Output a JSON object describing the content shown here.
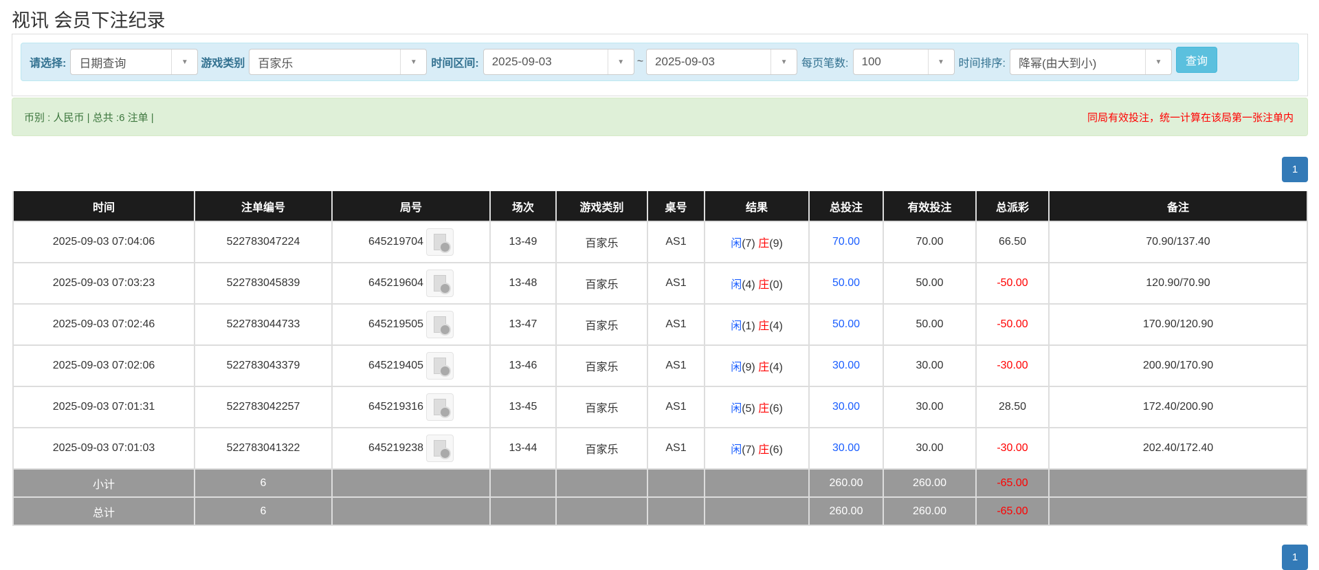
{
  "page": {
    "title": "视讯 会员下注纪录"
  },
  "filter": {
    "select_label": "请选择:",
    "select_value": "日期查询",
    "game_label": "游戏类别",
    "game_value": "百家乐",
    "range_label": "时间区间:",
    "start_date": "2025-09-03",
    "tilde": "~",
    "end_date": "2025-09-03",
    "per_page_label": "每页笔数:",
    "per_page_value": "100",
    "sort_label": "时间排序:",
    "sort_value": "降幂(由大到小)",
    "query_button": "查询"
  },
  "summary": {
    "left": "币别 : 人民币 | 总共 :6 注单 |",
    "right": "同局有效投注，统一计算在该局第一张注单内"
  },
  "pagination": {
    "current": "1"
  },
  "colors": {
    "header": "#1c1c1c",
    "accent": "#337ab7",
    "positive": "#1a5eff",
    "negative": "#ff0000",
    "sum_row": "#999999"
  },
  "table": {
    "headers": [
      "时间",
      "注单编号",
      "局号",
      "场次",
      "游戏类别",
      "桌号",
      "结果",
      "总投注",
      "有效投注",
      "总派彩",
      "备注"
    ],
    "rows": [
      {
        "time": "2025-09-03 07:04:06",
        "bet_no": "522783047224",
        "round": "645219704",
        "shoe": "13-49",
        "game": "百家乐",
        "table": "AS1",
        "player_label": "闲",
        "player": "(7)",
        "banker_label": "庄",
        "banker": "(9)",
        "total": "70.00",
        "valid": "70.00",
        "payout": "66.50",
        "payout_neg": false,
        "note": "70.90/137.40"
      },
      {
        "time": "2025-09-03 07:03:23",
        "bet_no": "522783045839",
        "round": "645219604",
        "shoe": "13-48",
        "game": "百家乐",
        "table": "AS1",
        "player_label": "闲",
        "player": "(4)",
        "banker_label": "庄",
        "banker": "(0)",
        "total": "50.00",
        "valid": "50.00",
        "payout": "-50.00",
        "payout_neg": true,
        "note": "120.90/70.90"
      },
      {
        "time": "2025-09-03 07:02:46",
        "bet_no": "522783044733",
        "round": "645219505",
        "shoe": "13-47",
        "game": "百家乐",
        "table": "AS1",
        "player_label": "闲",
        "player": "(1)",
        "banker_label": "庄",
        "banker": "(4)",
        "total": "50.00",
        "valid": "50.00",
        "payout": "-50.00",
        "payout_neg": true,
        "note": "170.90/120.90"
      },
      {
        "time": "2025-09-03 07:02:06",
        "bet_no": "522783043379",
        "round": "645219405",
        "shoe": "13-46",
        "game": "百家乐",
        "table": "AS1",
        "player_label": "闲",
        "player": "(9)",
        "banker_label": "庄",
        "banker": "(4)",
        "total": "30.00",
        "valid": "30.00",
        "payout": "-30.00",
        "payout_neg": true,
        "note": "200.90/170.90"
      },
      {
        "time": "2025-09-03 07:01:31",
        "bet_no": "522783042257",
        "round": "645219316",
        "shoe": "13-45",
        "game": "百家乐",
        "table": "AS1",
        "player_label": "闲",
        "player": "(5)",
        "banker_label": "庄",
        "banker": "(6)",
        "total": "30.00",
        "valid": "30.00",
        "payout": "28.50",
        "payout_neg": false,
        "note": "172.40/200.90"
      },
      {
        "time": "2025-09-03 07:01:03",
        "bet_no": "522783041322",
        "round": "645219238",
        "shoe": "13-44",
        "game": "百家乐",
        "table": "AS1",
        "player_label": "闲",
        "player": "(7)",
        "banker_label": "庄",
        "banker": "(6)",
        "total": "30.00",
        "valid": "30.00",
        "payout": "-30.00",
        "payout_neg": true,
        "note": "202.40/172.40"
      }
    ],
    "totals": [
      {
        "label": "小计",
        "count": "6",
        "total": "260.00",
        "valid": "260.00",
        "payout": "-65.00"
      },
      {
        "label": "总计",
        "count": "6",
        "total": "260.00",
        "valid": "260.00",
        "payout": "-65.00"
      }
    ]
  }
}
